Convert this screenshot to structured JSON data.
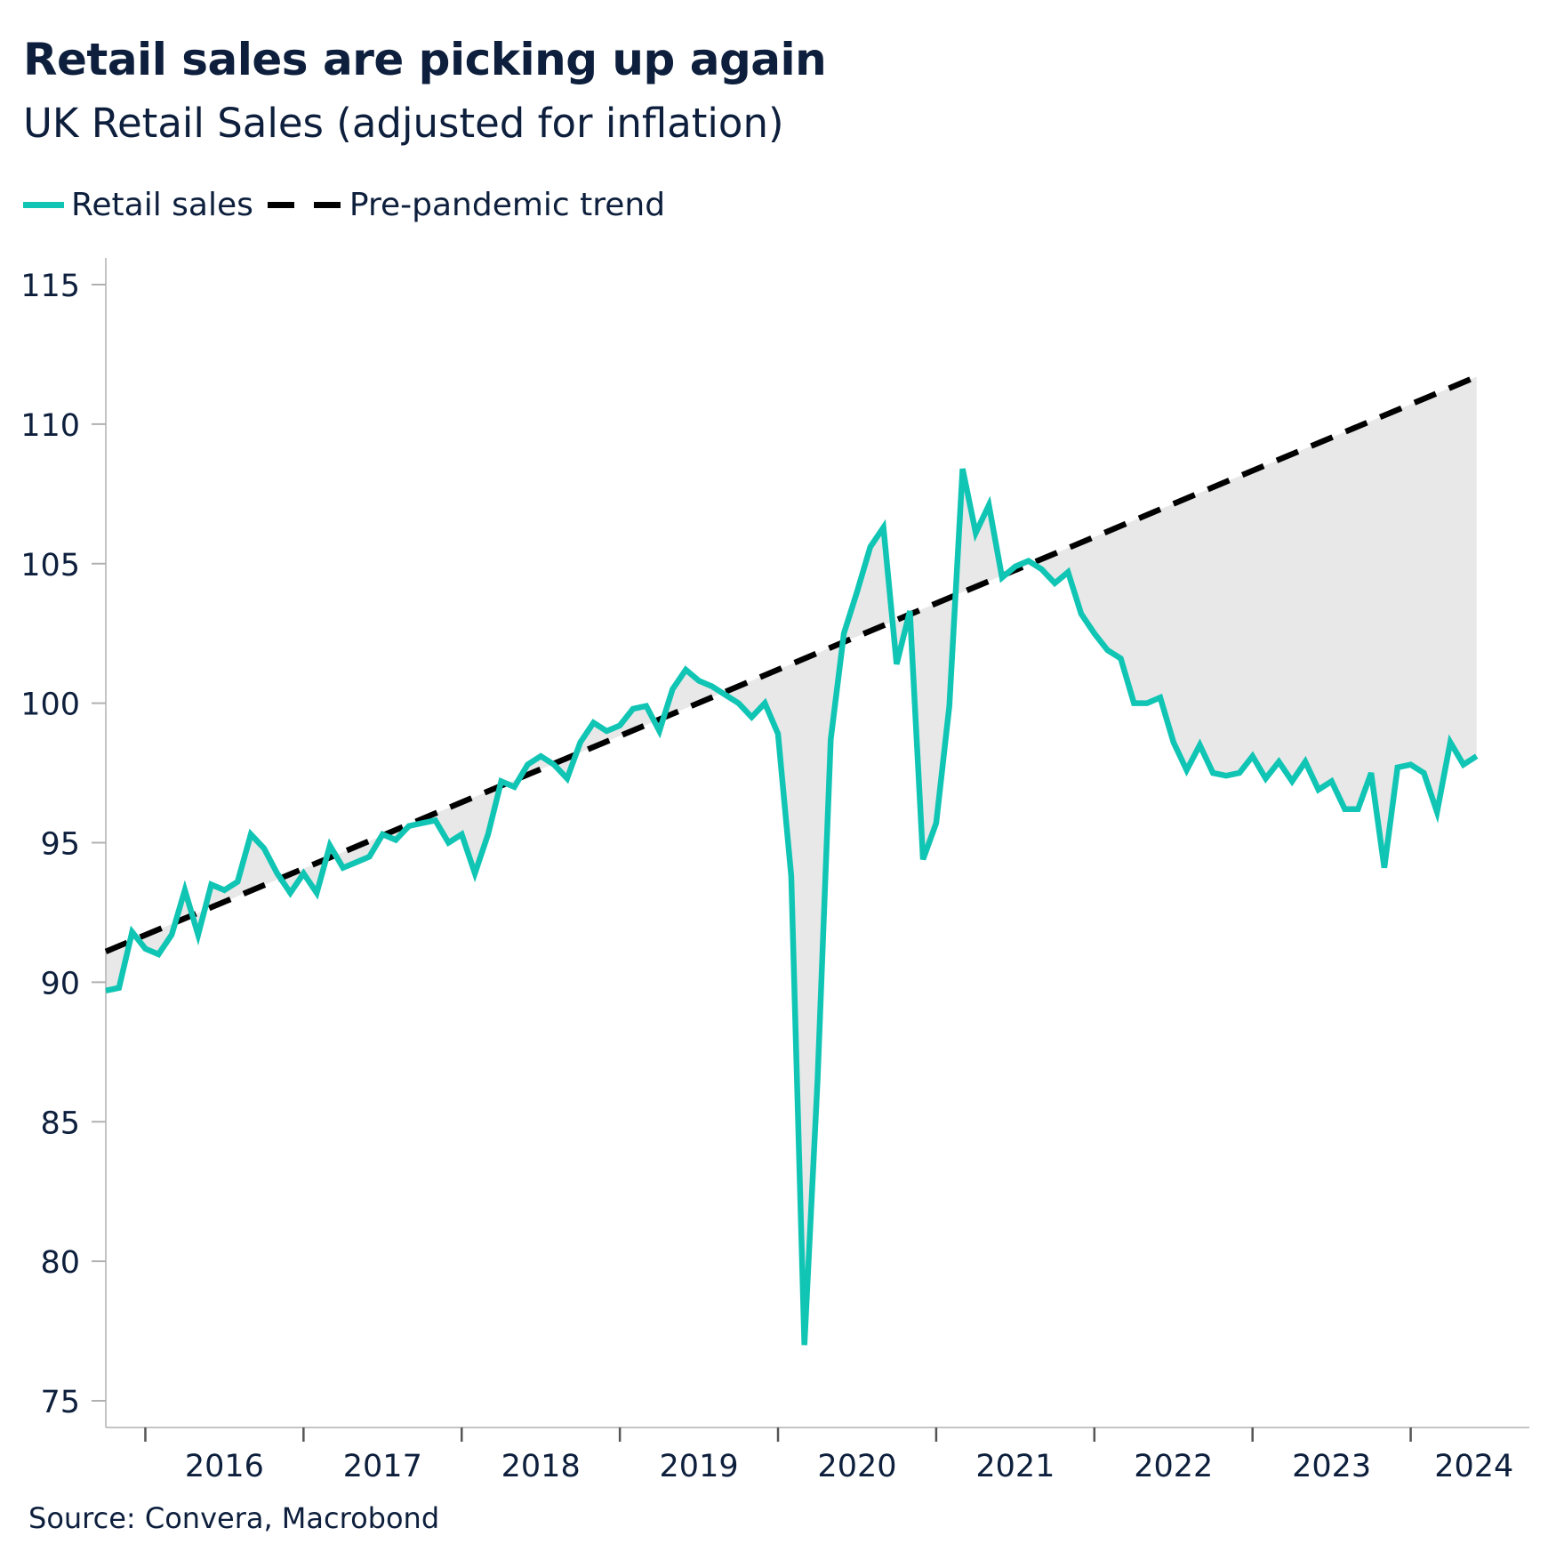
{
  "title": "Retail sales are picking up again",
  "subtitle": "UK Retail Sales (adjusted for inflation)",
  "source": "Source: Convera, Macrobond",
  "legend": {
    "retail": "Retail sales",
    "trend": "Pre-pandemic trend"
  },
  "colors": {
    "retail": "#10c5b4",
    "trend": "#000000",
    "gap_fill": "#e8e8e8",
    "axis": "#b0b0b0",
    "text": "#0d1f3c"
  },
  "chart_data": {
    "type": "line",
    "title": "Retail sales are picking up again",
    "subtitle": "UK Retail Sales (adjusted for inflation)",
    "xlabel": "",
    "ylabel": "",
    "ylim": [
      75,
      115
    ],
    "yticks": [
      75,
      80,
      85,
      90,
      95,
      100,
      105,
      110,
      115
    ],
    "xlim": [
      2015.75,
      2024.75
    ],
    "xticks_year_boundaries": [
      2016,
      2017,
      2018,
      2019,
      2020,
      2021,
      2022,
      2023,
      2024
    ],
    "xlabels": [
      {
        "label": "2016",
        "at": 2016.5
      },
      {
        "label": "2017",
        "at": 2017.5
      },
      {
        "label": "2018",
        "at": 2018.5
      },
      {
        "label": "2019",
        "at": 2019.5
      },
      {
        "label": "2020",
        "at": 2020.5
      },
      {
        "label": "2021",
        "at": 2021.5
      },
      {
        "label": "2022",
        "at": 2022.5
      },
      {
        "label": "2023",
        "at": 2023.5
      },
      {
        "label": "2024",
        "at": 2024.4
      }
    ],
    "grid": false,
    "legend_position": "top-left",
    "series": [
      {
        "name": "Retail sales",
        "start": "2015-10",
        "frequency": "monthly",
        "values": [
          89.7,
          89.8,
          91.8,
          91.2,
          91.0,
          91.7,
          93.3,
          91.7,
          93.5,
          93.3,
          93.6,
          95.3,
          94.8,
          93.9,
          93.2,
          93.9,
          93.2,
          94.9,
          94.1,
          94.3,
          94.5,
          95.3,
          95.1,
          95.6,
          95.7,
          95.8,
          95.0,
          95.3,
          93.9,
          95.3,
          97.2,
          97.0,
          97.8,
          98.1,
          97.8,
          97.3,
          98.6,
          99.3,
          99.0,
          99.2,
          99.8,
          99.9,
          99.0,
          100.5,
          101.2,
          100.8,
          100.6,
          100.3,
          100.0,
          99.5,
          100.0,
          98.9,
          93.8,
          77.0,
          86.5,
          98.7,
          102.5,
          104.0,
          105.6,
          106.3,
          101.4,
          103.3,
          94.4,
          95.7,
          99.9,
          108.4,
          106.1,
          107.1,
          104.5,
          104.9,
          105.1,
          104.8,
          104.3,
          104.7,
          103.2,
          102.5,
          101.9,
          101.6,
          100.0,
          100.0,
          100.2,
          98.6,
          97.6,
          98.5,
          97.5,
          97.4,
          97.5,
          98.1,
          97.3,
          97.9,
          97.2,
          97.9,
          96.9,
          97.2,
          96.2,
          96.2,
          97.5,
          94.1,
          97.7,
          97.8,
          97.5,
          96.1,
          98.6,
          97.8,
          98.1
        ]
      },
      {
        "name": "Pre-pandemic trend",
        "start": 91.1,
        "end": 111.7,
        "x_start": "2015-10",
        "x_end": "2024-06",
        "style": "dashed"
      }
    ]
  }
}
